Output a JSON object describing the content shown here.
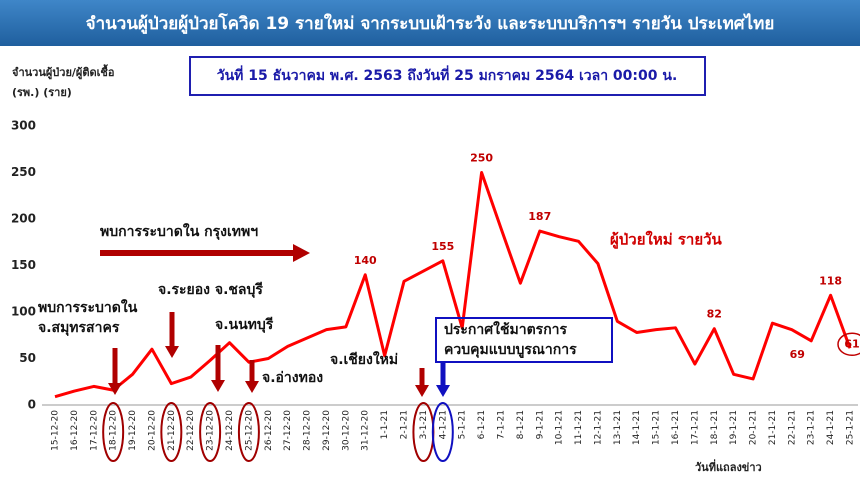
{
  "chart_data": {
    "type": "line",
    "title": "จำนวนผู้ป่วยผู้ป่วยโควิด 19 รายใหม่ จากระบบเฝ้าระวัง และระบบบริการฯ รายวัน ประเทศไทย",
    "subtitle": "วันที่ 15 ธันวาคม พ.ศ. 2563 ถึงวันที่ 25 มกราคม 2564 เวลา 00:00 น.",
    "y_label": [
      "จำนวนผู้ป่วย/ผู้ติดเชื้อ",
      "(รพ.) (ราย)"
    ],
    "x_label": "วันที่แถลงข่าว",
    "categories": [
      "15-12-20",
      "16-12-20",
      "17-12-20",
      "18-12-20",
      "19-12-20",
      "20-12-20",
      "21-12-20",
      "22-12-20",
      "23-12-20",
      "24-12-20",
      "25-12-20",
      "26-12-20",
      "27-12-20",
      "28-12-20",
      "29-12-20",
      "30-12-20",
      "31-12-20",
      "1-1-21",
      "2-1-21",
      "3-1-21",
      "4-1-21",
      "5-1-21",
      "6-1-21",
      "7-1-21",
      "8-1-21",
      "9-1-21",
      "10-1-21",
      "11-1-21",
      "12-1-21",
      "13-1-21",
      "14-1-21",
      "15-1-21",
      "16-1-21",
      "17-1-21",
      "18-1-21",
      "19-1-21",
      "20-1-21",
      "21-1-21",
      "22-1-21",
      "23-1-21",
      "24-1-21",
      "25-1-21"
    ],
    "series": [
      {
        "name": "ผู้ป่วยใหม่ รายวัน",
        "color": "#ff0000",
        "values": [
          9,
          15,
          20,
          16,
          33,
          60,
          23,
          30,
          48,
          67,
          46,
          50,
          63,
          72,
          81,
          84,
          140,
          53,
          133,
          144,
          155,
          83,
          250,
          190,
          131,
          187,
          181,
          176,
          152,
          90,
          78,
          81,
          83,
          44,
          82,
          33,
          28,
          88,
          81,
          69,
          118,
          61
        ],
        "value_labels": [
          null,
          null,
          null,
          null,
          null,
          null,
          null,
          null,
          null,
          null,
          null,
          null,
          null,
          null,
          null,
          null,
          "140",
          null,
          null,
          null,
          "155",
          null,
          "250",
          null,
          null,
          "187",
          null,
          null,
          null,
          null,
          null,
          null,
          null,
          null,
          "82",
          null,
          null,
          null,
          null,
          "69",
          "118",
          "61"
        ]
      }
    ],
    "ylim": [
      0,
      300
    ],
    "yticks": [
      0,
      50,
      100,
      150,
      200,
      250,
      300
    ],
    "annotations": [
      {
        "text": "พบการระบาดใน กรุงเทพฯ"
      },
      {
        "text": [
          "พบการระบาดใน",
          "จ.สมุทรสาคร"
        ]
      },
      {
        "text": "จ.ระยอง จ.ชลบุรี"
      },
      {
        "text": "จ.นนทบุรี"
      },
      {
        "text": "จ.อ่างทอง"
      },
      {
        "text": "จ.เชียงใหม่"
      },
      {
        "text": [
          "ประกาศใช้มาตรการ",
          "ควบคุมแบบบูรณาการ"
        ]
      }
    ]
  }
}
